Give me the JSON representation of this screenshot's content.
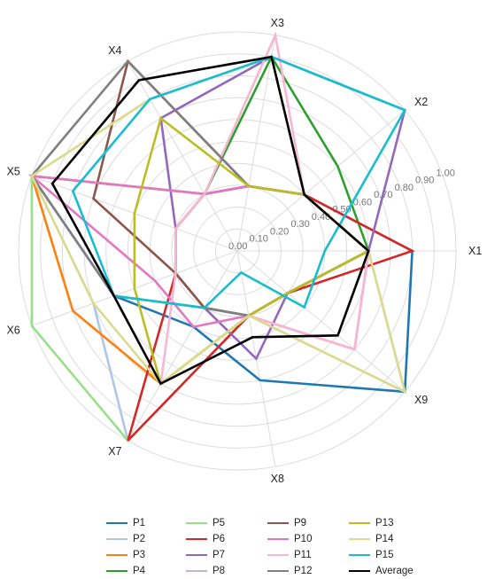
{
  "chart_data": {
    "type": "radar",
    "axes": [
      "X1",
      "X2",
      "X3",
      "X4",
      "X5",
      "X6",
      "X7",
      "X8",
      "X9"
    ],
    "rlim": [
      0,
      1
    ],
    "tick_labels": [
      "0.00",
      "0.10",
      "0.20",
      "0.30",
      "0.40",
      "0.50",
      "0.60",
      "0.70",
      "0.80",
      "0.90",
      "1.00"
    ],
    "grid": true,
    "legend_position": "bottom",
    "series": [
      {
        "name": "P1",
        "color": "#1f77b4",
        "values": [
          0.8,
          0.4,
          0.3,
          0.3,
          1.0,
          0.6,
          0.4,
          0.6,
          1.0
        ]
      },
      {
        "name": "P2",
        "color": "#aec7e8",
        "values": [
          0.6,
          0.4,
          0.3,
          0.3,
          1.0,
          0.7,
          1.0,
          0.3,
          1.0
        ]
      },
      {
        "name": "P3",
        "color": "#ff7f0e",
        "values": [
          0.6,
          0.4,
          0.3,
          0.3,
          1.0,
          0.8,
          0.7,
          0.3,
          0.3
        ]
      },
      {
        "name": "P4",
        "color": "#2ca02c",
        "values": [
          0.6,
          0.6,
          0.9,
          0.3,
          0.3,
          0.3,
          0.3,
          0.3,
          0.3
        ]
      },
      {
        "name": "P5",
        "color": "#98df8a",
        "values": [
          0.6,
          0.4,
          0.3,
          0.3,
          1.0,
          1.0,
          1.0,
          0.3,
          0.3
        ]
      },
      {
        "name": "P6",
        "color": "#d62728",
        "values": [
          0.8,
          0.4,
          0.3,
          0.3,
          0.3,
          0.3,
          1.0,
          0.3,
          0.3
        ]
      },
      {
        "name": "P7",
        "color": "#9467bd",
        "values": [
          0.6,
          1.0,
          0.9,
          0.7,
          0.3,
          0.3,
          0.3,
          0.5,
          0.3
        ]
      },
      {
        "name": "P8",
        "color": "#c5b0d5",
        "values": [
          0.6,
          0.4,
          0.3,
          0.3,
          0.3,
          0.3,
          0.3,
          0.3,
          0.3
        ]
      },
      {
        "name": "P9",
        "color": "#8c564b",
        "values": [
          0.6,
          0.4,
          0.3,
          1.0,
          0.7,
          0.3,
          0.3,
          0.3,
          0.3
        ]
      },
      {
        "name": "P10",
        "color": "#e377c2",
        "values": [
          0.6,
          0.4,
          0.3,
          0.3,
          1.0,
          0.4,
          0.4,
          0.3,
          0.7
        ]
      },
      {
        "name": "P11",
        "color": "#f7b6d2",
        "values": [
          0.6,
          0.4,
          1.0,
          0.3,
          0.3,
          0.3,
          0.7,
          0.3,
          0.7
        ]
      },
      {
        "name": "P12",
        "color": "#7f7f7f",
        "values": [
          0.6,
          0.4,
          0.3,
          1.0,
          1.0,
          0.6,
          0.3,
          0.3,
          0.3
        ]
      },
      {
        "name": "P13",
        "color": "#bcbd22",
        "values": [
          0.6,
          0.4,
          0.3,
          0.7,
          0.5,
          0.5,
          0.7,
          0.3,
          0.3
        ]
      },
      {
        "name": "P14",
        "color": "#dbdb8d",
        "values": [
          0.6,
          0.4,
          0.9,
          0.8,
          1.0,
          0.7,
          0.7,
          0.3,
          1.0
        ]
      },
      {
        "name": "P15",
        "color": "#17becf",
        "values": [
          0.4,
          1.0,
          0.9,
          0.8,
          0.8,
          0.6,
          0.3,
          0.1,
          0.4
        ]
      },
      {
        "name": "Average",
        "color": "#000000",
        "values": [
          0.6,
          0.4,
          0.9,
          0.9,
          0.9,
          0.6,
          0.7,
          0.4,
          0.6
        ]
      }
    ]
  }
}
